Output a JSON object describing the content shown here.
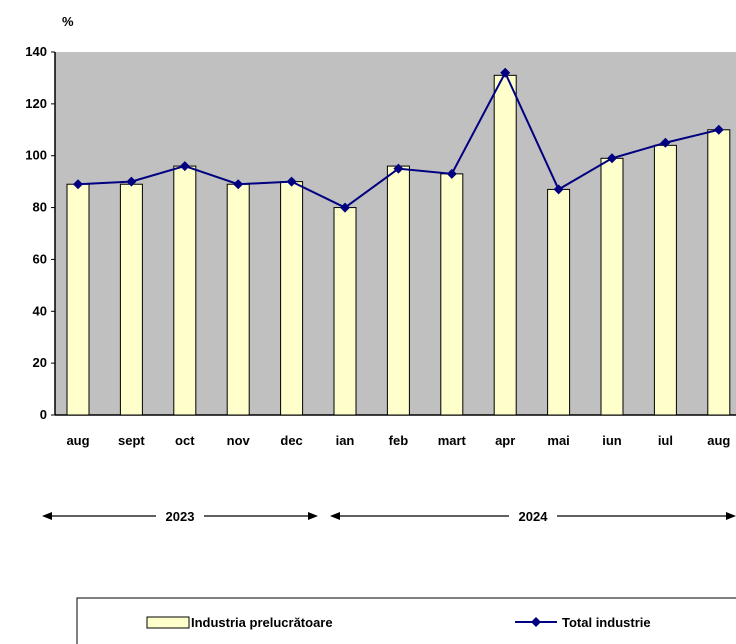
{
  "chart_data": {
    "type": "bar",
    "y_unit_label": "%",
    "categories": [
      "aug",
      "sept",
      "oct",
      "nov",
      "dec",
      "ian",
      "feb",
      "mart",
      "apr",
      "mai",
      "iun",
      "iul",
      "aug"
    ],
    "series": [
      {
        "name": "Industria prelucrătoare",
        "kind": "bar",
        "color": "#ffffcc",
        "values": [
          89,
          89,
          96,
          89,
          90,
          80,
          96,
          93,
          131,
          87,
          99,
          104,
          110
        ]
      },
      {
        "name": "Total industrie",
        "kind": "line",
        "color": "#000080",
        "values": [
          89,
          90,
          96,
          89,
          90,
          80,
          95,
          93,
          132,
          87,
          99,
          105,
          110
        ]
      }
    ],
    "ylim": [
      0,
      140
    ],
    "yticks": [
      0,
      20,
      40,
      60,
      80,
      100,
      120,
      140
    ],
    "grid": false,
    "plot_background": "#c0c0c0",
    "years": [
      {
        "label": "2023",
        "from_index": 0,
        "to_index": 4
      },
      {
        "label": "2024",
        "from_index": 5,
        "to_index": 12
      }
    ],
    "legend_position": "bottom"
  }
}
